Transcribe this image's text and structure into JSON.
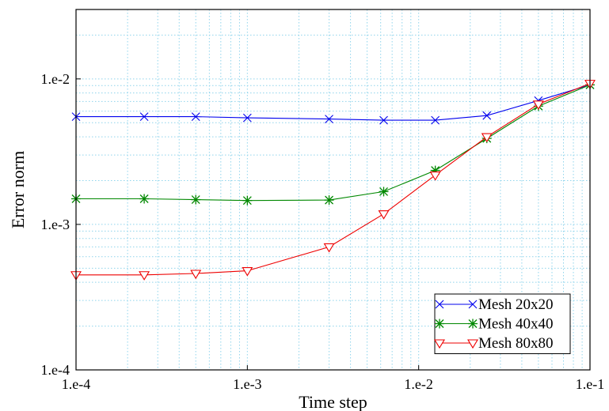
{
  "chart_data": {
    "type": "line",
    "title": "",
    "xlabel": "Time step",
    "ylabel": "Error norm",
    "xscale": "log",
    "yscale": "log",
    "xlim": [
      0.0001,
      0.1
    ],
    "ylim": [
      0.0001,
      0.03
    ],
    "x_ticks": [
      {
        "value": 0.0001,
        "label": "1.e-4"
      },
      {
        "value": 0.001,
        "label": "1.e-3"
      },
      {
        "value": 0.01,
        "label": "1.e-2"
      },
      {
        "value": 0.1,
        "label": "1.e-1"
      }
    ],
    "y_ticks": [
      {
        "value": 0.0001,
        "label": "1.e-4"
      },
      {
        "value": 0.001,
        "label": "1.e-3"
      },
      {
        "value": 0.01,
        "label": "1.e-2"
      }
    ],
    "grid": true,
    "legend_position": "bottom-right",
    "series": [
      {
        "name": "Mesh 20x20",
        "color": "#0000ee",
        "marker": "x",
        "x": [
          0.0001,
          0.00025,
          0.0005,
          0.001,
          0.003,
          0.00625,
          0.0125,
          0.025,
          0.05,
          0.1
        ],
        "y": [
          0.0055,
          0.0055,
          0.0055,
          0.0054,
          0.0053,
          0.0052,
          0.0052,
          0.0056,
          0.0071,
          0.0091
        ]
      },
      {
        "name": "Mesh 40x40",
        "color": "#008800",
        "marker": "star",
        "x": [
          0.0001,
          0.00025,
          0.0005,
          0.001,
          0.003,
          0.00625,
          0.0125,
          0.025,
          0.05,
          0.1
        ],
        "y": [
          0.0015,
          0.0015,
          0.00148,
          0.00146,
          0.00147,
          0.00168,
          0.00235,
          0.0039,
          0.0065,
          0.0091
        ]
      },
      {
        "name": "Mesh 80x80",
        "color": "#ee0000",
        "marker": "triangle-down",
        "x": [
          0.0001,
          0.00025,
          0.0005,
          0.001,
          0.003,
          0.00625,
          0.0125,
          0.025,
          0.05,
          0.1
        ],
        "y": [
          0.00045,
          0.00045,
          0.00046,
          0.00048,
          0.0007,
          0.00118,
          0.00218,
          0.004,
          0.0067,
          0.0093
        ]
      }
    ]
  }
}
